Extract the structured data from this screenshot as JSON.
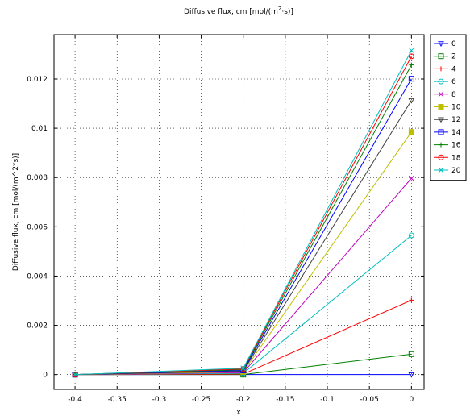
{
  "chart_data": {
    "type": "line",
    "title_main": "Diffusive flux, cm [mol/(m",
    "title_sup": "2",
    "title_tail": "·s)]",
    "xlabel": "x",
    "ylabel": "Diffusive flux, cm [mol/(m^2*s)]",
    "xlim": [
      -0.425,
      0.015
    ],
    "ylim": [
      -0.0006,
      0.0138
    ],
    "grid": true,
    "legend_position": "outside-right-top",
    "x_ticks": [
      -0.4,
      -0.35,
      -0.3,
      -0.25,
      -0.2,
      -0.15,
      -0.1,
      -0.05,
      0
    ],
    "x_tick_labels": [
      "-0.4",
      "-0.35",
      "-0.3",
      "-0.25",
      "-0.2",
      "-0.15",
      "-0.1",
      "-0.05",
      "0"
    ],
    "y_ticks": [
      0,
      0.002,
      0.004,
      0.006,
      0.008,
      0.01,
      0.012
    ],
    "y_tick_labels": [
      "0",
      "0.002",
      "0.004",
      "0.006",
      "0.008",
      "0.01",
      "0.012"
    ],
    "x": [
      -0.4,
      -0.2,
      0
    ],
    "series": [
      {
        "name": "0",
        "color": "#0000ff",
        "marker": "triangle-down",
        "values": [
          0,
          0,
          0
        ]
      },
      {
        "name": "2",
        "color": "#008000",
        "marker": "square",
        "values": [
          0,
          0,
          0.00083
        ]
      },
      {
        "name": "4",
        "color": "#ff0000",
        "marker": "plus",
        "values": [
          0,
          2e-05,
          0.00302
        ]
      },
      {
        "name": "6",
        "color": "#00bfbf",
        "marker": "circle",
        "values": [
          0,
          5e-05,
          0.00565
        ]
      },
      {
        "name": "8",
        "color": "#bf00bf",
        "marker": "x",
        "values": [
          0,
          8e-05,
          0.00797
        ]
      },
      {
        "name": "10",
        "color": "#bfbf00",
        "marker": "square-filled",
        "values": [
          0,
          0.00011,
          0.00985
        ]
      },
      {
        "name": "12",
        "color": "#404040",
        "marker": "triangle-down",
        "values": [
          0,
          0.00014,
          0.01113
        ]
      },
      {
        "name": "14",
        "color": "#0000ff",
        "marker": "square",
        "values": [
          0,
          0.00017,
          0.01201
        ]
      },
      {
        "name": "16",
        "color": "#008000",
        "marker": "plus",
        "values": [
          0,
          0.0002,
          0.01257
        ]
      },
      {
        "name": "18",
        "color": "#ff0000",
        "marker": "circle",
        "values": [
          0,
          0.00023,
          0.01292
        ]
      },
      {
        "name": "20",
        "color": "#00bfbf",
        "marker": "x",
        "values": [
          0,
          0.00026,
          0.01316
        ]
      }
    ]
  }
}
